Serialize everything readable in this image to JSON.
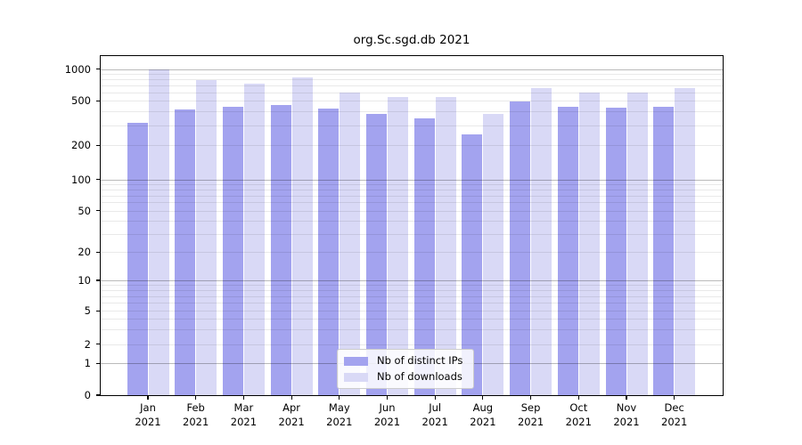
{
  "title": "org.Sc.sgd.db 2021",
  "colors": {
    "distinct_ips": "#a3a3ef",
    "downloads": "#d9d9f6",
    "grid_major": "rgba(0,0,0,0.27)",
    "grid_minor": "rgba(0,0,0,0.085)",
    "axis": "#000000",
    "legend_border": "#cccccc",
    "background": "#ffffff"
  },
  "legend": {
    "items": [
      {
        "label": "Nb of distinct IPs",
        "series_key": "distinct_ips"
      },
      {
        "label": "Nb of downloads",
        "series_key": "downloads"
      }
    ],
    "position": "lower center"
  },
  "chart_data": {
    "type": "bar",
    "title": "org.Sc.sgd.db 2021",
    "categories": [
      "Jan",
      "Feb",
      "Mar",
      "Apr",
      "May",
      "Jun",
      "Jul",
      "Aug",
      "Sep",
      "Oct",
      "Nov",
      "Dec"
    ],
    "year_label": "2021",
    "series": [
      {
        "name": "Nb of distinct IPs",
        "color": "#a3a3ef",
        "values": [
          320,
          415,
          445,
          455,
          430,
          380,
          350,
          250,
          490,
          440,
          435,
          440
        ]
      },
      {
        "name": "Nb of downloads",
        "color": "#d9d9f6",
        "values": [
          1000,
          790,
          725,
          830,
          605,
          540,
          540,
          380,
          660,
          595,
          600,
          665
        ]
      }
    ],
    "xlabel": "",
    "ylabel": "",
    "yscale": "symlog (log above 1, linear 0-1)",
    "yticks": [
      0,
      1,
      2,
      5,
      10,
      20,
      50,
      100,
      200,
      500,
      1000
    ],
    "ylim": [
      0,
      1300
    ],
    "grid": true,
    "legend_position": "lower center"
  }
}
